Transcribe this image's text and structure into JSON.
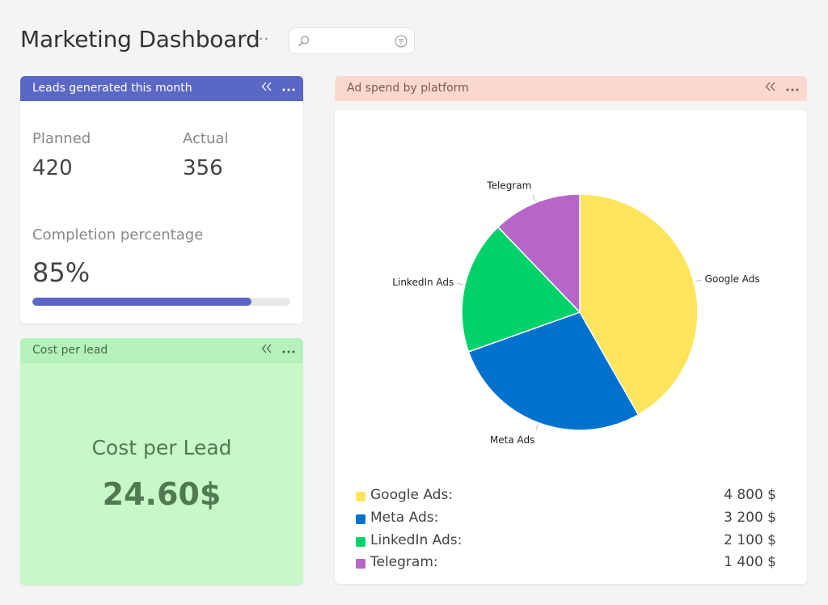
{
  "header": {
    "title": "Marketing Dashboard",
    "more_label": "···",
    "search": {
      "value": "",
      "placeholder": ""
    }
  },
  "widgets": {
    "leads": {
      "title": "Leads generated this month",
      "planned_label": "Planned",
      "planned_value": "420",
      "actual_label": "Actual",
      "actual_value": "356",
      "completion_label": "Completion percentage",
      "completion_value": "85%",
      "progress_fraction": 0.85,
      "accent": "#5b67c4"
    },
    "cost": {
      "title": "Cost per lead",
      "label": "Cost per Lead",
      "value": "24.60$",
      "header_bg": "#b4f2b9",
      "body_bg": "#c8f7c8"
    },
    "ad_spend": {
      "title": "Ad spend by platform",
      "header_bg": "#fbd8cf",
      "legend": [
        {
          "name": "Google Ads:",
          "value": "4 800 $",
          "color": "#ffe45c"
        },
        {
          "name": "Meta Ads:",
          "value": "3 200 $",
          "color": "#0072ce"
        },
        {
          "name": "LinkedIn Ads:",
          "value": "2 100 $",
          "color": "#00d26a"
        },
        {
          "name": "Telegram:",
          "value": "1 400 $",
          "color": "#b566c8"
        }
      ]
    }
  },
  "chart_data": {
    "type": "pie",
    "categories": [
      "Google Ads",
      "Meta Ads",
      "LinkedIn Ads",
      "Telegram"
    ],
    "values": [
      4800,
      3200,
      2100,
      1400
    ],
    "colors": [
      "#ffe45c",
      "#0072ce",
      "#00d26a",
      "#b566c8"
    ],
    "title": "",
    "legend": "bottom"
  },
  "icons": {
    "collapse": "collapse-icon",
    "more": "more-icon",
    "search": "search-icon",
    "filter": "filter-icon"
  }
}
